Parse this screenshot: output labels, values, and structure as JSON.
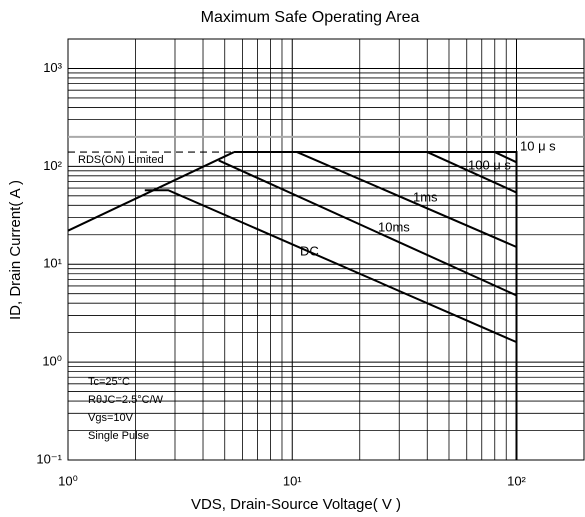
{
  "chart_data": {
    "type": "line",
    "title": "Maximum Safe Operating Area",
    "x_label": "VDS, Drain-Source Voltage( V )",
    "y_label": "ID, Drain Current( A )",
    "xscale": "log",
    "yscale": "log",
    "grid": true,
    "minor_grid": true,
    "xlim": [
      1,
      200
    ],
    "ylim": [
      0.1,
      2000
    ],
    "xticks": [
      {
        "value": 1,
        "label": "10⁰"
      },
      {
        "value": 10,
        "label": "10¹"
      },
      {
        "value": 100,
        "label": "10²"
      }
    ],
    "yticks": [
      {
        "value": 0.1,
        "label": "10⁻¹"
      },
      {
        "value": 1,
        "label": "10⁰"
      },
      {
        "value": 10,
        "label": "10¹"
      },
      {
        "value": 100,
        "label": "10²"
      },
      {
        "value": 1000,
        "label": "10³"
      }
    ],
    "series": [
      {
        "name": "RDS(ON) Limited",
        "color": "#000000",
        "dashed": true,
        "x": [
          1,
          5.5
        ],
        "values": [
          140,
          140
        ]
      },
      {
        "color": "#000000",
        "x": [
          1,
          5.5
        ],
        "values": [
          22,
          140
        ]
      },
      {
        "name": "DC",
        "color": "#000000",
        "x": [
          2.2,
          2.8,
          100
        ],
        "values": [
          57,
          57,
          1.6
        ]
      },
      {
        "name": "10ms",
        "color": "#000000",
        "x": [
          4.7,
          100
        ],
        "values": [
          115,
          4.8
        ]
      },
      {
        "name": "1ms",
        "color": "#000000",
        "x": [
          10.5,
          100
        ],
        "values": [
          140,
          15
        ]
      },
      {
        "name": "100 μ s",
        "color": "#000000",
        "x": [
          40,
          100
        ],
        "values": [
          140,
          54
        ]
      },
      {
        "name": "10 μ s",
        "color": "#000000",
        "x": [
          80,
          100
        ],
        "values": [
          140,
          110
        ]
      },
      {
        "color": "#000000",
        "x": [
          5.5,
          100,
          100
        ],
        "values": [
          140,
          140,
          0.1
        ]
      },
      {
        "color": "#aaaaaa",
        "x": [
          1,
          200
        ],
        "values": [
          200,
          200
        ]
      }
    ],
    "notes": [
      "Tc=25°C",
      "RθJC=2.5°C/W",
      "Vgs=10V",
      "Single Pulse"
    ]
  }
}
